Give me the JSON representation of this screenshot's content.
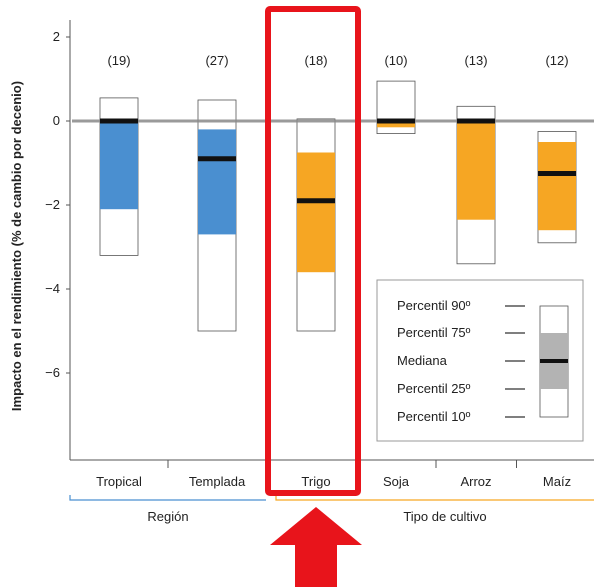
{
  "chart_data": {
    "type": "boxplot",
    "ylabel": "Impacto en el rendimiento (% de cambio por decenio)",
    "ylim": [
      -8,
      2.3
    ],
    "yticks": [
      2,
      0,
      -2,
      -4,
      -6
    ],
    "ytick_labels": [
      "2",
      "0",
      "−2",
      "−4",
      "−6"
    ],
    "grid": false,
    "legend_placement": "bottom-right",
    "highlighted_category": "Trigo",
    "categories": [
      "Tropical",
      "Templada",
      "Trigo",
      "Soja",
      "Arroz",
      "Maíz"
    ],
    "counts": [
      "(19)",
      "(27)",
      "(18)",
      "(10)",
      "(13)",
      "(12)"
    ],
    "groups": [
      {
        "label": "Región",
        "categories": [
          "Tropical",
          "Templada"
        ],
        "color": "#4a8fd0"
      },
      {
        "label": "Tipo de cultivo",
        "categories": [
          "Trigo",
          "Soja",
          "Arroz",
          "Maíz"
        ],
        "color": "#f6a623"
      }
    ],
    "boxes": [
      {
        "category": "Tropical",
        "p10": -3.2,
        "p25": -2.1,
        "median": 0.0,
        "p75": 0.0,
        "p90": 0.55,
        "color": "#4a8fd0"
      },
      {
        "category": "Templada",
        "p10": -5.0,
        "p25": -2.7,
        "median": -0.9,
        "p75": -0.2,
        "p90": 0.5,
        "color": "#4a8fd0"
      },
      {
        "category": "Trigo",
        "p10": -5.0,
        "p25": -3.6,
        "median": -1.9,
        "p75": -0.75,
        "p90": 0.05,
        "color": "#f6a623"
      },
      {
        "category": "Soja",
        "p10": -0.3,
        "p25": -0.15,
        "median": 0.0,
        "p75": 0.0,
        "p90": 0.95,
        "color": "#f6a623"
      },
      {
        "category": "Arroz",
        "p10": -3.4,
        "p25": -2.35,
        "median": 0.0,
        "p75": 0.0,
        "p90": 0.35,
        "color": "#f6a623"
      },
      {
        "category": "Maíz",
        "p10": -2.9,
        "p25": -2.6,
        "median": -1.25,
        "p75": -0.5,
        "p90": -0.25,
        "color": "#f6a623"
      }
    ],
    "legend": {
      "entries": [
        "Percentil 90º",
        "Percentil 75º",
        "Mediana",
        "Percentil 25º",
        "Percentil 10º"
      ]
    },
    "colors": {
      "region": "#4a8fd0",
      "crop": "#f6a623",
      "highlight": "#e8141b",
      "zero_line": "#888888",
      "median": "#111111",
      "legend_box": "#b3b3b3"
    }
  }
}
